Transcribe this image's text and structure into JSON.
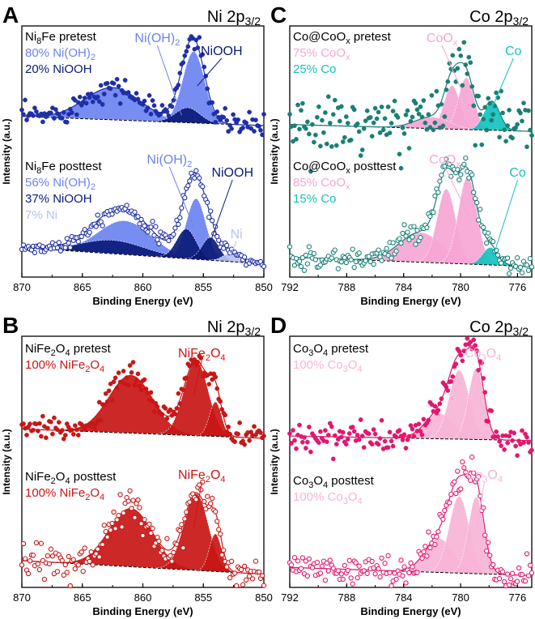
{
  "figure": {
    "panels": [
      {
        "letter": "A",
        "orbital": "Ni 2p",
        "orbital_sub": "3/2",
        "xlabel": "Binding Energy (eV)",
        "ylabel": "Intensity (a.u.)",
        "xlim": [
          870,
          850
        ],
        "xticks": [
          "870",
          "865",
          "860",
          "855",
          "850"
        ],
        "colors": {
          "main": "#1f2fa8",
          "mid": "#6d83f0",
          "dark": "#0b1a78",
          "light": "#b7c2f2"
        },
        "blocks": [
          {
            "sample_main": "Ni",
            "sample_sub": "8",
            "sample_rest": "Fe pretest",
            "lines": [
              {
                "parts": [
                  "80% Ni(OH)",
                  "2",
                  ""
                ],
                "tone": "mid"
              },
              {
                "parts": [
                  "20% NiOOH",
                  "",
                  ""
                ],
                "tone": "dark"
              }
            ],
            "peak_labels": [
              {
                "parts": [
                  "Ni(OH)",
                  "2",
                  ""
                ],
                "tone": "mid",
                "peak_x": 856.8
              },
              {
                "parts": [
                  "NiOOH",
                  "",
                  ""
                ],
                "tone": "dark",
                "peak_x": 855.5
              }
            ]
          },
          {
            "sample_main": "Ni",
            "sample_sub": "8",
            "sample_rest": "Fe posttest",
            "lines": [
              {
                "parts": [
                  "56% Ni(OH)",
                  "2",
                  ""
                ],
                "tone": "mid"
              },
              {
                "parts": [
                  "37% NiOOH",
                  "",
                  ""
                ],
                "tone": "dark"
              },
              {
                "parts": [
                  "7% Ni",
                  "",
                  ""
                ],
                "tone": "light"
              }
            ],
            "peak_labels": [
              {
                "parts": [
                  "Ni(OH)",
                  "2",
                  ""
                ],
                "tone": "mid",
                "peak_x": 855.8
              },
              {
                "parts": [
                  "NiOOH",
                  "",
                  ""
                ],
                "tone": "dark",
                "peak_x": 854.6
              },
              {
                "parts": [
                  "Ni",
                  "",
                  ""
                ],
                "tone": "light",
                "peak_x": 852.8
              }
            ]
          }
        ]
      },
      {
        "letter": "C",
        "orbital": "Co 2p",
        "orbital_sub": "3/2",
        "xlabel": "Binding Energy (eV)",
        "ylabel": "Intensity (a.u.)",
        "xlim": [
          792,
          775
        ],
        "xticks": [
          "792",
          "788",
          "784",
          "780",
          "776"
        ],
        "colors": {
          "main": "#1a7f76",
          "mid": "#f6a6d4",
          "dark": "#13c2c0",
          "light": "#13c2c0"
        },
        "blocks": [
          {
            "sample_main": "Co@CoO",
            "sample_sub": "x",
            "sample_rest": " pretest",
            "lines": [
              {
                "parts": [
                  "75% CoO",
                  "x",
                  ""
                ],
                "tone": "mid"
              },
              {
                "parts": [
                  "25% Co",
                  "",
                  ""
                ],
                "tone": "dark"
              }
            ],
            "peak_labels": [
              {
                "parts": [
                  "CoO",
                  "x",
                  ""
                ],
                "tone": "mid",
                "peak_x": 779.6
              },
              {
                "parts": [
                  "Co",
                  "",
                  ""
                ],
                "tone": "dark",
                "peak_x": 778.0
              }
            ]
          },
          {
            "sample_main": "Co@CoO",
            "sample_sub": "x",
            "sample_rest": " posttest",
            "lines": [
              {
                "parts": [
                  "85% CoO",
                  "x",
                  ""
                ],
                "tone": "mid"
              },
              {
                "parts": [
                  "15% Co",
                  "",
                  ""
                ],
                "tone": "dark"
              }
            ],
            "peak_labels": [
              {
                "parts": [
                  "CoO",
                  "x",
                  ""
                ],
                "tone": "mid",
                "peak_x": 779.4
              },
              {
                "parts": [
                  "Co",
                  "",
                  ""
                ],
                "tone": "dark",
                "peak_x": 777.7
              }
            ]
          }
        ]
      },
      {
        "letter": "B",
        "orbital": "Ni 2p",
        "orbital_sub": "3/2",
        "xlabel": "Binding Energy (eV)",
        "ylabel": "Intensity (a.u.)",
        "xlim": [
          870,
          850
        ],
        "xticks": [
          "870",
          "865",
          "860",
          "855",
          "850"
        ],
        "colors": {
          "main": "#c91616",
          "mid": "#c91616",
          "dark": "#c91616",
          "light": "#c91616"
        },
        "blocks": [
          {
            "sample_main": "NiFe",
            "sample_sub": "2",
            "sample_rest": "O",
            "sample_sub2": "4",
            "sample_rest2": " pretest",
            "lines": [
              {
                "parts": [
                  "100% NiFe",
                  "2",
                  "O",
                  "4"
                ],
                "tone": "mid"
              }
            ],
            "peak_labels": [
              {
                "parts": [
                  "NiFe",
                  "2",
                  "O",
                  "4"
                ],
                "tone": "mid",
                "peak_x": 855.8
              }
            ]
          },
          {
            "sample_main": "NiFe",
            "sample_sub": "2",
            "sample_rest": "O",
            "sample_sub2": "4",
            "sample_rest2": " posttest",
            "lines": [
              {
                "parts": [
                  "100% NiFe",
                  "2",
                  "O",
                  "4"
                ],
                "tone": "mid"
              }
            ],
            "peak_labels": [
              {
                "parts": [
                  "NiFe",
                  "2",
                  "O",
                  "4"
                ],
                "tone": "mid",
                "peak_x": 855.8
              }
            ]
          }
        ]
      },
      {
        "letter": "D",
        "orbital": "Co 2p",
        "orbital_sub": "3/2",
        "xlabel": "Binding Energy (eV)",
        "ylabel": "Intensity (a.u.)",
        "xlim": [
          792,
          775
        ],
        "xticks": [
          "792",
          "788",
          "784",
          "780",
          "776"
        ],
        "colors": {
          "main": "#e4166f",
          "mid": "#f7b4d6",
          "dark": "#e4166f",
          "light": "#f7b4d6"
        },
        "blocks": [
          {
            "sample_main": "Co",
            "sample_sub": "3",
            "sample_rest": "O",
            "sample_sub2": "4",
            "sample_rest2": " pretest",
            "lines": [
              {
                "parts": [
                  "100% Co",
                  "3",
                  "O",
                  "4"
                ],
                "tone": "mid"
              }
            ],
            "peak_labels": [
              {
                "parts": [
                  "Co",
                  "3",
                  "O",
                  "4"
                ],
                "tone": "mid",
                "peak_x": 779.0
              }
            ]
          },
          {
            "sample_main": "Co",
            "sample_sub": "3",
            "sample_rest": "O",
            "sample_sub2": "4",
            "sample_rest2": " posttest",
            "lines": [
              {
                "parts": [
                  "100% Co",
                  "3",
                  "O",
                  "4"
                ],
                "tone": "mid"
              }
            ],
            "peak_labels": [
              {
                "parts": [
                  "Co",
                  "3",
                  "O",
                  "4"
                ],
                "tone": "mid",
                "peak_x": 778.9
              }
            ]
          }
        ]
      }
    ]
  },
  "chart_data": [
    {
      "type": "scatter",
      "panel": "A",
      "title": "Ni 2p3/2",
      "xlabel": "Binding Energy (eV)",
      "ylabel": "Intensity (a.u.)",
      "xlim": [
        870,
        850
      ],
      "x_reversed": true,
      "spectra": [
        {
          "name": "Ni8Fe pretest",
          "background": [
            [
              870,
              0.1
            ],
            [
              850,
              0.02
            ]
          ],
          "components": [
            {
              "name": "Ni(OH)2 broad",
              "center": 862.5,
              "height": 0.28,
              "width": 2.3,
              "tone": "mid"
            },
            {
              "name": "Ni(OH)2",
              "center": 855.8,
              "height": 0.62,
              "width": 0.9,
              "tone": "mid"
            },
            {
              "name": "NiOOH",
              "center": 856.3,
              "height": 0.13,
              "width": 1.0,
              "tone": "dark"
            }
          ],
          "noise": 0.05
        },
        {
          "name": "Ni8Fe posttest",
          "background": [
            [
              870,
              0.12
            ],
            [
              850,
              0.0
            ]
          ],
          "components": [
            {
              "name": "Ni(OH)2 broad",
              "center": 861.5,
              "height": 0.25,
              "width": 2.2,
              "tone": "mid"
            },
            {
              "name": "NiOOH broad",
              "center": 862.5,
              "height": 0.1,
              "width": 2.6,
              "tone": "dark"
            },
            {
              "name": "Ni(OH)2",
              "center": 855.6,
              "height": 0.45,
              "width": 0.8,
              "tone": "mid"
            },
            {
              "name": "NiOOH",
              "center": 856.4,
              "height": 0.22,
              "width": 0.8,
              "tone": "dark"
            },
            {
              "name": "NiOOH 2",
              "center": 854.4,
              "height": 0.17,
              "width": 0.7,
              "tone": "dark"
            },
            {
              "name": "Ni",
              "center": 852.6,
              "height": 0.07,
              "width": 0.7,
              "tone": "light"
            }
          ],
          "noise": 0.025
        }
      ]
    },
    {
      "type": "scatter",
      "panel": "C",
      "title": "Co 2p3/2",
      "xlabel": "Binding Energy (eV)",
      "ylabel": "Intensity (a.u.)",
      "xlim": [
        792,
        775
      ],
      "x_reversed": true,
      "spectra": [
        {
          "name": "Co@CoOx pretest",
          "background": [
            [
              792,
              0.03
            ],
            [
              775,
              -0.03
            ]
          ],
          "components": [
            {
              "name": "CoOx 1",
              "center": 780.6,
              "height": 0.38,
              "width": 0.55,
              "tone": "mid"
            },
            {
              "name": "CoOx 2",
              "center": 779.6,
              "height": 0.45,
              "width": 0.55,
              "tone": "mid"
            },
            {
              "name": "CoOx 3",
              "center": 782.0,
              "height": 0.1,
              "width": 1.2,
              "tone": "mid"
            },
            {
              "name": "Co",
              "center": 777.8,
              "height": 0.25,
              "width": 0.55,
              "tone": "dark"
            }
          ],
          "noise": 0.13
        },
        {
          "name": "Co@CoOx posttest",
          "background": [
            [
              792,
              0.05
            ],
            [
              775,
              -0.02
            ]
          ],
          "components": [
            {
              "name": "CoOx broad",
              "center": 782.8,
              "height": 0.22,
              "width": 1.5,
              "tone": "mid"
            },
            {
              "name": "CoOx 1",
              "center": 781.0,
              "height": 0.55,
              "width": 0.65,
              "tone": "mid"
            },
            {
              "name": "CoOx 2",
              "center": 779.5,
              "height": 0.65,
              "width": 0.65,
              "tone": "mid"
            },
            {
              "name": "Co",
              "center": 777.9,
              "height": 0.13,
              "width": 0.55,
              "tone": "dark"
            }
          ],
          "noise": 0.04
        }
      ]
    },
    {
      "type": "scatter",
      "panel": "B",
      "title": "Ni 2p3/2",
      "xlabel": "Binding Energy (eV)",
      "ylabel": "Intensity (a.u.)",
      "xlim": [
        870,
        850
      ],
      "x_reversed": true,
      "spectra": [
        {
          "name": "NiFe2O4 pretest",
          "background": [
            [
              870,
              0.08
            ],
            [
              850,
              0.0
            ]
          ],
          "components": [
            {
              "name": "NiFe2O4 sat",
              "center": 861.0,
              "height": 0.5,
              "width": 1.8,
              "tone": "mid"
            },
            {
              "name": "NiFe2O4",
              "center": 855.6,
              "height": 0.65,
              "width": 1.0,
              "tone": "mid"
            },
            {
              "name": "NiFe2O4 2",
              "center": 854.0,
              "height": 0.3,
              "width": 0.5,
              "tone": "mid"
            }
          ],
          "noise": 0.05
        },
        {
          "name": "NiFe2O4 posttest",
          "background": [
            [
              870,
              0.1
            ],
            [
              850,
              0.0
            ]
          ],
          "components": [
            {
              "name": "NiFe2O4 sat",
              "center": 861.0,
              "height": 0.43,
              "width": 1.8,
              "tone": "mid"
            },
            {
              "name": "NiFe2O4",
              "center": 855.6,
              "height": 0.57,
              "width": 1.0,
              "tone": "mid"
            },
            {
              "name": "NiFe2O4 2",
              "center": 854.0,
              "height": 0.28,
              "width": 0.5,
              "tone": "mid"
            }
          ],
          "noise": 0.06
        }
      ]
    },
    {
      "type": "scatter",
      "panel": "D",
      "title": "Co 2p3/2",
      "xlabel": "Binding Energy (eV)",
      "ylabel": "Intensity (a.u.)",
      "xlim": [
        792,
        775
      ],
      "x_reversed": true,
      "spectra": [
        {
          "name": "Co3O4 pretest",
          "background": [
            [
              792,
              0.02
            ],
            [
              775,
              -0.02
            ]
          ],
          "components": [
            {
              "name": "Co3O4 sat",
              "center": 781.5,
              "height": 0.22,
              "width": 1.0,
              "tone": "mid"
            },
            {
              "name": "Co3O4 1",
              "center": 780.1,
              "height": 0.6,
              "width": 0.7,
              "tone": "mid"
            },
            {
              "name": "Co3O4 2",
              "center": 778.9,
              "height": 0.62,
              "width": 0.55,
              "tone": "mid"
            }
          ],
          "noise": 0.06
        },
        {
          "name": "Co3O4 posttest",
          "background": [
            [
              792,
              0.05
            ],
            [
              775,
              -0.01
            ]
          ],
          "components": [
            {
              "name": "Co3O4 sat",
              "center": 781.5,
              "height": 0.25,
              "width": 1.0,
              "tone": "mid"
            },
            {
              "name": "Co3O4 1",
              "center": 780.1,
              "height": 0.57,
              "width": 0.7,
              "tone": "mid"
            },
            {
              "name": "Co3O4 2",
              "center": 778.9,
              "height": 0.57,
              "width": 0.55,
              "tone": "mid"
            }
          ],
          "noise": 0.05
        }
      ]
    }
  ]
}
